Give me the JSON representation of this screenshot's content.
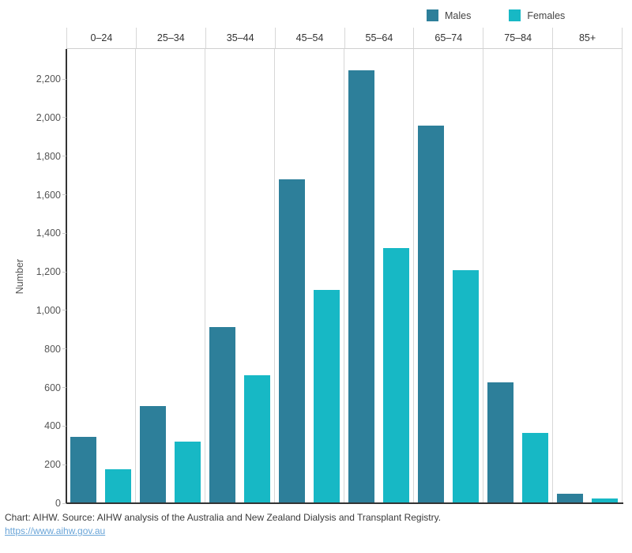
{
  "chart_data": {
    "type": "bar",
    "title": "",
    "categories": [
      "0–24",
      "25–34",
      "35–44",
      "45–54",
      "55–64",
      "65–74",
      "75–84",
      "85+"
    ],
    "series": [
      {
        "name": "Males",
        "color": "#2d7f9a",
        "values": [
          345,
          505,
          915,
          1680,
          2245,
          1960,
          625,
          50
        ]
      },
      {
        "name": "Females",
        "color": "#17b8c5",
        "values": [
          175,
          320,
          665,
          1105,
          1325,
          1210,
          365,
          25
        ]
      }
    ],
    "xlabel": "",
    "ylabel": "Number",
    "ylim": [
      0,
      2350
    ],
    "yticks": [
      0,
      200,
      400,
      600,
      800,
      1000,
      1200,
      1400,
      1600,
      1800,
      2000,
      2200
    ],
    "grid": "vertical-column-separators-only",
    "legend_position": "top-right"
  },
  "footer": {
    "caption": "Chart: AIHW. Source: AIHW analysis of the Australia and New Zealand Dialysis and Transplant Registry.",
    "link": "https://www.aihw.gov.au"
  },
  "colors": {
    "males": "#2d7f9a",
    "females": "#17b8c5",
    "axis": "#333333",
    "separator": "#d7d7d7",
    "link": "#6aa5d8"
  }
}
